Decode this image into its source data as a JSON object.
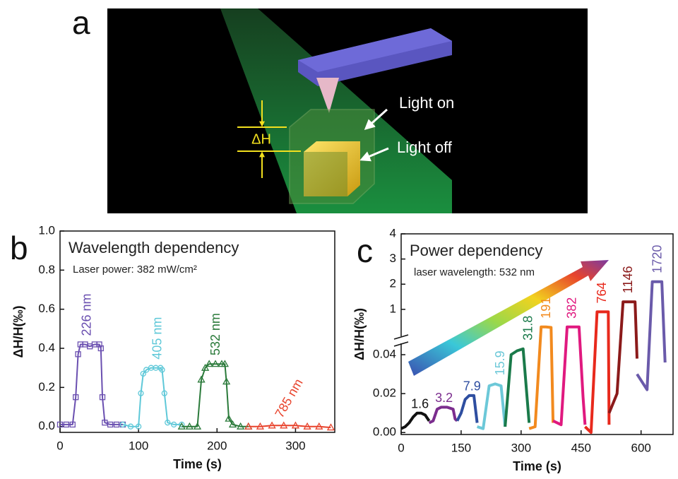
{
  "illustration": {
    "label": "a",
    "light_on": "Light on",
    "light_off": "Light off",
    "delta_h": "ΔH"
  },
  "chart_data": [
    {
      "type": "line",
      "panel_label": "b",
      "title": "Wavelength dependency",
      "subtitle": "Laser power: 382 mW/cm²",
      "xlabel": "Time (s)",
      "ylabel": "ΔH/H(‰)",
      "xlim": [
        0,
        350
      ],
      "xticks": [
        0,
        100,
        200,
        300
      ],
      "ylim": [
        -0.03,
        1.0
      ],
      "yticks": [
        {
          "value": 0,
          "label": "0.0"
        },
        {
          "value": 0.2,
          "label": "0.2"
        },
        {
          "value": 0.4,
          "label": "0.4"
        },
        {
          "value": 0.6,
          "label": "0.6"
        },
        {
          "value": 0.8,
          "label": "0.8"
        },
        {
          "value": 1.0,
          "label": "1.0"
        }
      ],
      "series": [
        {
          "name": "226 nm",
          "color": "#6a4fb0",
          "marker": "square",
          "x": [
            0,
            8,
            16,
            20,
            23,
            26,
            32,
            38,
            44,
            50,
            52,
            54,
            57,
            64,
            72,
            80
          ],
          "values": [
            0.01,
            0.01,
            0.01,
            0.15,
            0.37,
            0.42,
            0.42,
            0.41,
            0.42,
            0.42,
            0.4,
            0.15,
            0.02,
            0.01,
            0.01,
            0.01
          ]
        },
        {
          "name": "405 nm",
          "color": "#5ec8d8",
          "marker": "circle",
          "x": [
            80,
            90,
            100,
            103,
            106,
            110,
            116,
            122,
            128,
            130,
            133,
            137,
            145,
            155
          ],
          "values": [
            0.01,
            0.0,
            0.0,
            0.17,
            0.27,
            0.29,
            0.3,
            0.3,
            0.3,
            0.29,
            0.17,
            0.02,
            0.01,
            0.01
          ]
        },
        {
          "name": "532 nm",
          "color": "#2a7a3a",
          "marker": "triangle",
          "x": [
            155,
            165,
            175,
            180,
            185,
            190,
            198,
            206,
            210,
            212,
            215,
            220,
            230,
            240
          ],
          "values": [
            0.0,
            0.0,
            0.0,
            0.24,
            0.3,
            0.32,
            0.32,
            0.32,
            0.32,
            0.23,
            0.04,
            0.01,
            0.0,
            0.0
          ]
        },
        {
          "name": "785 nm",
          "color": "#e8432c",
          "marker": "triangle",
          "x": [
            240,
            255,
            270,
            285,
            300,
            315,
            330,
            345
          ],
          "values": [
            0.0,
            0.0,
            0.005,
            0.005,
            0.005,
            0.0,
            0.0,
            -0.005
          ]
        }
      ]
    },
    {
      "type": "line",
      "panel_label": "c",
      "title": "Power dependency",
      "subtitle": "laser wavelength: 532 nm",
      "xlabel": "Time (s)",
      "ylabel": "ΔH/H(‰)",
      "xlim": [
        0,
        680
      ],
      "xticks": [
        0,
        150,
        300,
        450,
        600
      ],
      "ylim": [
        -0.001,
        0.048
      ],
      "yticks": [
        {
          "value": 0,
          "label": "0.00"
        },
        {
          "value": 0.02,
          "label": "0.02"
        },
        {
          "value": 0.04,
          "label": "0.04"
        }
      ],
      "upper_ylim": [
        0,
        4
      ],
      "upper_yticks": [
        1,
        2,
        3,
        4
      ],
      "axis_break": true,
      "series": [
        {
          "name": "1.6",
          "color": "#111111",
          "x": [
            0,
            10,
            20,
            30,
            40,
            50,
            60,
            70
          ],
          "values": [
            0.002,
            0.003,
            0.005,
            0.008,
            0.01,
            0.01,
            0.009,
            0.006
          ]
        },
        {
          "name": "3.2",
          "color": "#7b2d8e",
          "x": [
            70,
            80,
            90,
            100,
            115,
            130,
            135,
            140
          ],
          "values": [
            0.005,
            0.006,
            0.012,
            0.013,
            0.013,
            0.012,
            0.007,
            0.006
          ]
        },
        {
          "name": "7.9",
          "color": "#2e4ea0",
          "x": [
            140,
            150,
            160,
            170,
            182,
            190
          ],
          "values": [
            0.006,
            0.01,
            0.017,
            0.019,
            0.019,
            0.005
          ]
        },
        {
          "name": "15.9",
          "color": "#6cc8d8",
          "x": [
            190,
            205,
            220,
            235,
            250,
            260
          ],
          "values": [
            0.003,
            0.002,
            0.024,
            0.025,
            0.024,
            0.003
          ]
        },
        {
          "name": "31.8",
          "color": "#1a7a4a",
          "x": [
            260,
            275,
            290,
            305,
            320
          ],
          "values": [
            0.003,
            0.04,
            0.042,
            0.043,
            0.005
          ]
        },
        {
          "name": "191",
          "color": "#f28a1e",
          "x": [
            320,
            335,
            350,
            362,
            375,
            380
          ],
          "values": [
            0.002,
            0.003,
            0.3,
            0.3,
            0.28,
            0.005
          ]
        },
        {
          "name": "382",
          "color": "#e0197f",
          "x": [
            380,
            400,
            415,
            430,
            445,
            455,
            460
          ],
          "values": [
            0.006,
            0.004,
            0.3,
            0.3,
            0.3,
            0.018,
            0.004
          ]
        },
        {
          "name": "764",
          "color": "#e8291c",
          "x": [
            460,
            475,
            490,
            505,
            518,
            520
          ],
          "values": [
            0.003,
            0.0,
            0.9,
            0.9,
            0.9,
            0.004
          ]
        },
        {
          "name": "1146",
          "color": "#8b1a1a",
          "x": [
            520,
            540,
            555,
            570,
            585,
            590
          ],
          "values": [
            0.01,
            0.02,
            1.3,
            1.3,
            1.3,
            0.038
          ]
        },
        {
          "name": "1720",
          "color": "#6a5aaa",
          "x": [
            590,
            615,
            628,
            640,
            652,
            660
          ],
          "values": [
            0.03,
            0.022,
            2.1,
            2.1,
            2.1,
            0.036
          ]
        }
      ]
    }
  ]
}
